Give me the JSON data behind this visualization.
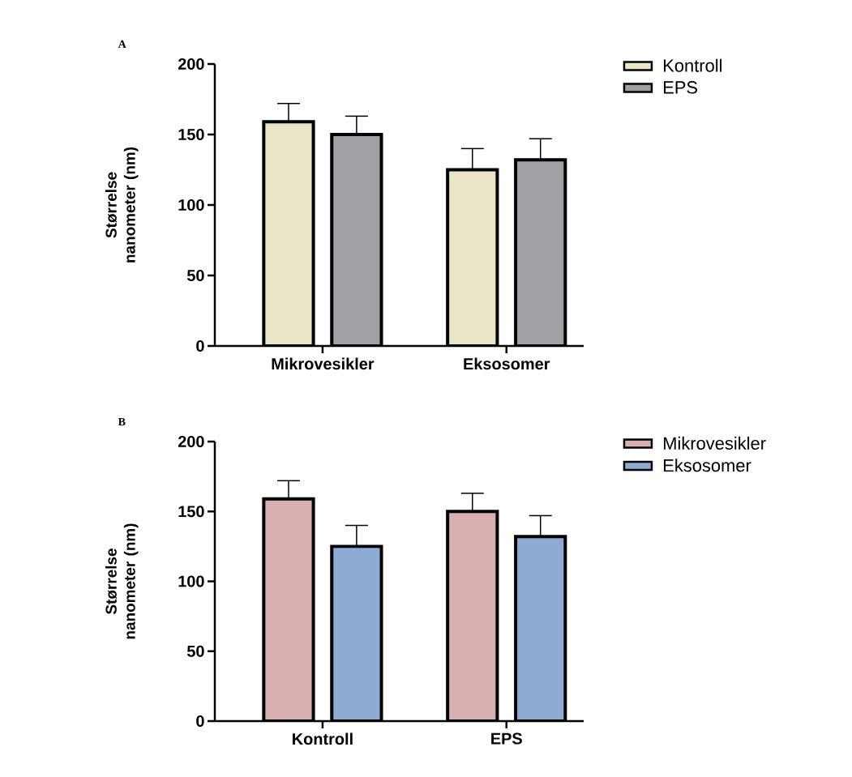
{
  "chart_data": [
    {
      "type": "bar",
      "title": "A",
      "ylabel": "Størrelse nanometer (nm)",
      "categories": [
        "Mikrovesikler",
        "Eksosomer"
      ],
      "series": [
        {
          "name": "Kontroll",
          "color": "#ebe5c8",
          "values": [
            159,
            125
          ],
          "errors": [
            13,
            15
          ]
        },
        {
          "name": "EPS",
          "color": "#a1a0a5",
          "values": [
            150,
            132
          ],
          "errors": [
            13,
            15
          ]
        }
      ],
      "ylim": [
        0,
        200
      ],
      "yticks": [
        0,
        50,
        100,
        150,
        200
      ],
      "legend": "top right",
      "grid": false
    },
    {
      "type": "bar",
      "title": "B",
      "ylabel": "Størrelse nanometer (nm)",
      "categories": [
        "Kontroll",
        "EPS"
      ],
      "series": [
        {
          "name": "Mikrovesikler",
          "color": "#d8b0b0",
          "values": [
            159,
            150
          ],
          "errors": [
            13,
            13
          ]
        },
        {
          "name": "Eksosomer",
          "color": "#8eacd3",
          "values": [
            125,
            132
          ],
          "errors": [
            15,
            15
          ]
        }
      ],
      "ylim": [
        0,
        200
      ],
      "yticks": [
        0,
        50,
        100,
        150,
        200
      ],
      "legend": "top right",
      "grid": false
    }
  ]
}
